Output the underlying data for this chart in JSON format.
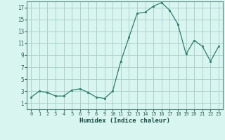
{
  "x": [
    0,
    1,
    2,
    3,
    4,
    5,
    6,
    7,
    8,
    9,
    10,
    11,
    12,
    13,
    14,
    15,
    16,
    17,
    18,
    19,
    20,
    21,
    22,
    23
  ],
  "y": [
    2,
    3,
    2.8,
    2.2,
    2.2,
    3.2,
    3.4,
    2.8,
    2.0,
    1.8,
    3.0,
    8.0,
    12.0,
    16.0,
    16.2,
    17.2,
    17.8,
    16.5,
    14.2,
    9.2,
    11.5,
    10.5,
    8.0,
    10.5
  ],
  "xlabel": "Humidex (Indice chaleur)",
  "line_color": "#2e7d6e",
  "marker_color": "#2e7d6e",
  "bg_color": "#d8f5f0",
  "grid_color": "#a8ccc8",
  "xlim": [
    -0.5,
    23.5
  ],
  "ylim": [
    0,
    18
  ],
  "yticks": [
    1,
    3,
    5,
    7,
    9,
    11,
    13,
    15,
    17
  ],
  "xticks": [
    0,
    1,
    2,
    3,
    4,
    5,
    6,
    7,
    8,
    9,
    10,
    11,
    12,
    13,
    14,
    15,
    16,
    17,
    18,
    19,
    20,
    21,
    22,
    23
  ]
}
